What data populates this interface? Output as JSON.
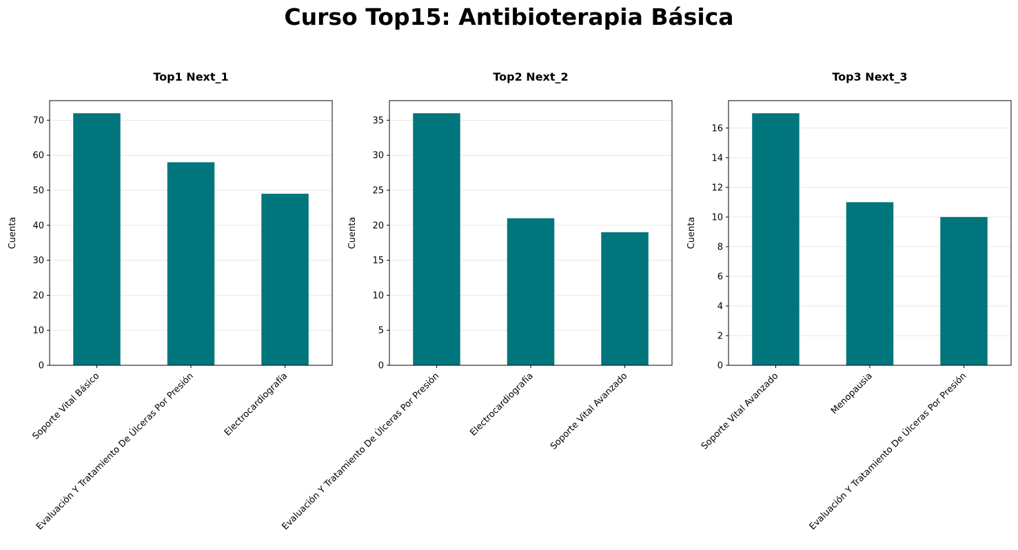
{
  "suptitle": "Curso Top15: Antibioterapia Básica",
  "colors": {
    "bar": "#00767c",
    "grid": "#e6e6e6",
    "axis": "#000000"
  },
  "chart_data": [
    {
      "type": "bar",
      "title": "Top1 Next_1",
      "ylabel": "Cuenta",
      "xlabel": "",
      "categories": [
        "Soporte Vital Básico",
        "Evaluación Y Tratamiento De Úlceras Por Presión",
        "Electrocardiografía"
      ],
      "values": [
        72,
        58,
        49
      ],
      "ylim": [
        0,
        75.6
      ],
      "yticks": [
        0,
        10,
        20,
        30,
        40,
        50,
        60,
        70
      ],
      "grid": "y"
    },
    {
      "type": "bar",
      "title": "Top2 Next_2",
      "ylabel": "Cuenta",
      "xlabel": "",
      "categories": [
        "Evaluación Y Tratamiento De Úlceras Por Presión",
        "Electrocardiografía",
        "Soporte Vital Avanzado"
      ],
      "values": [
        36,
        21,
        19
      ],
      "ylim": [
        0,
        37.8
      ],
      "yticks": [
        0,
        5,
        10,
        15,
        20,
        25,
        30,
        35
      ],
      "grid": "y"
    },
    {
      "type": "bar",
      "title": "Top3 Next_3",
      "ylabel": "Cuenta",
      "xlabel": "",
      "categories": [
        "Soporte Vital Avanzado",
        "Menopausia",
        "Evaluación Y Tratamiento De Úlceras Por Presión"
      ],
      "values": [
        17,
        11,
        10
      ],
      "ylim": [
        0,
        17.85
      ],
      "yticks": [
        0,
        2,
        4,
        6,
        8,
        10,
        12,
        14,
        16
      ],
      "grid": "y"
    }
  ]
}
